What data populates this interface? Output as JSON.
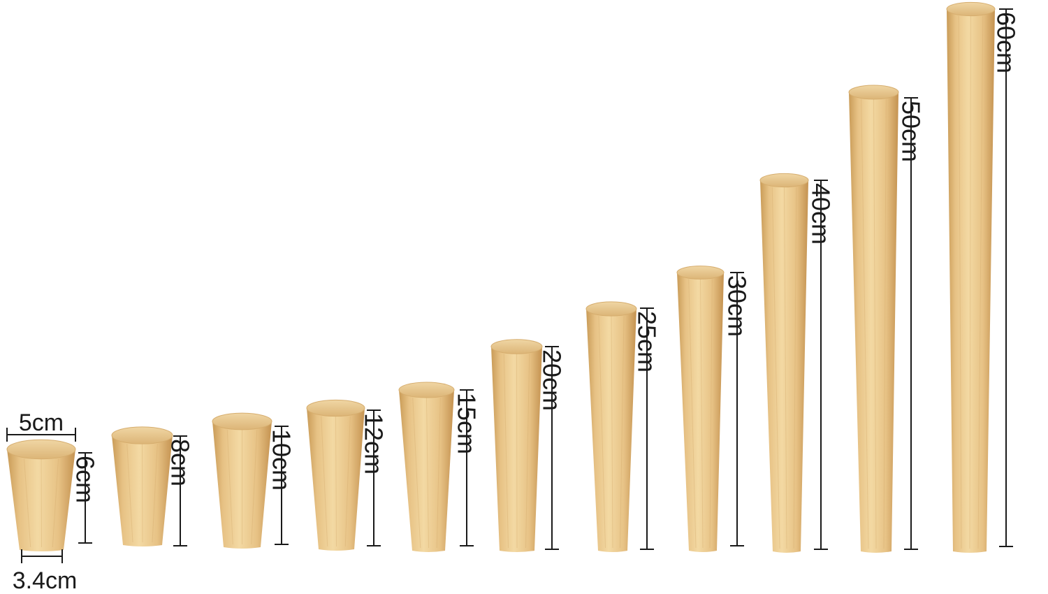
{
  "legs": [
    {
      "height_label": "6cm"
    },
    {
      "height_label": "8cm"
    },
    {
      "height_label": "10cm"
    },
    {
      "height_label": "12cm"
    },
    {
      "height_label": "15cm"
    },
    {
      "height_label": "20cm"
    },
    {
      "height_label": "25cm"
    },
    {
      "height_label": "30cm"
    },
    {
      "height_label": "40cm"
    },
    {
      "height_label": "50cm"
    },
    {
      "height_label": "60cm"
    }
  ],
  "top_width_label": "5cm",
  "bottom_width_label": "3.4cm",
  "colors": {
    "wood_light": "#f3d9a3",
    "wood_mid": "#e7c285",
    "wood_dark": "#c99b57",
    "top_face": "#e9cb93",
    "dimension_line": "#1a1a1a"
  }
}
